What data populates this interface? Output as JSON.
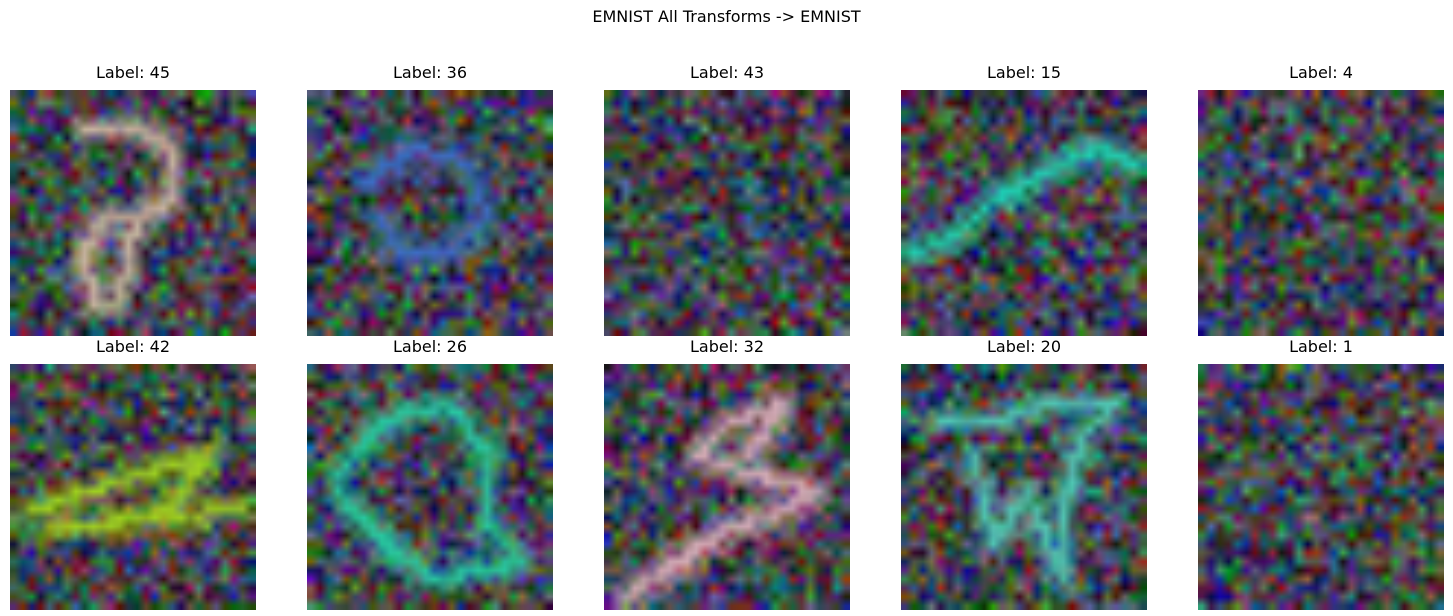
{
  "title": "EMNIST All Transforms -> EMNIST",
  "samples": [
    {
      "label": "Label: 45",
      "stroke_color": "#c8b4a0"
    },
    {
      "label": "Label: 36",
      "stroke_color": "#3c6ec8"
    },
    {
      "label": "Label: 43",
      "stroke_color": "#c84678"
    },
    {
      "label": "Label: 15",
      "stroke_color": "#1ed2b4"
    },
    {
      "label": "Label: 4",
      "stroke_color": "#3c8c3c"
    },
    {
      "label": "Label: 42",
      "stroke_color": "#a0d21e"
    },
    {
      "label": "Label: 26",
      "stroke_color": "#28c8a0"
    },
    {
      "label": "Label: 32",
      "stroke_color": "#d2aab4"
    },
    {
      "label": "Label: 20",
      "stroke_color": "#50c8b4"
    },
    {
      "label": "Label: 1",
      "stroke_color": "#b43c28"
    }
  ]
}
